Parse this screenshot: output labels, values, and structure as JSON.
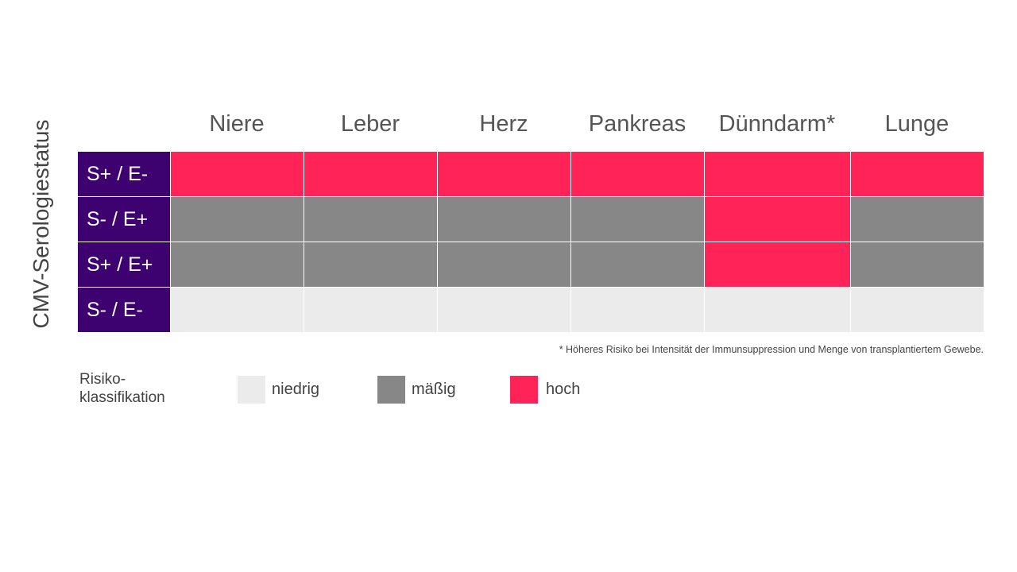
{
  "chart_data": {
    "type": "heatmap",
    "title": "",
    "ylabel": "CMV-Serologiestatus",
    "columns": [
      "Niere",
      "Leber",
      "Herz",
      "Pankreas",
      "Dünndarm*",
      "Lunge"
    ],
    "rows": [
      {
        "label": "S+ / E-",
        "values": [
          "hoch",
          "hoch",
          "hoch",
          "hoch",
          "hoch",
          "hoch"
        ]
      },
      {
        "label": "S- / E+",
        "values": [
          "mäßig",
          "mäßig",
          "mäßig",
          "mäßig",
          "hoch",
          "mäßig"
        ]
      },
      {
        "label": "S+ / E+",
        "values": [
          "mäßig",
          "mäßig",
          "mäßig",
          "mäßig",
          "hoch",
          "mäßig"
        ]
      },
      {
        "label": "S- / E-",
        "values": [
          "niedrig",
          "niedrig",
          "niedrig",
          "niedrig",
          "niedrig",
          "niedrig"
        ]
      }
    ],
    "legend": {
      "title_line1": "Risiko-",
      "title_line2": "klassifikation",
      "items": [
        {
          "key": "niedrig",
          "label": "niedrig",
          "color": "#ebebeb"
        },
        {
          "key": "mäßig",
          "label": "mäßig",
          "color": "#878787"
        },
        {
          "key": "hoch",
          "label": "hoch",
          "color": "#ff2358"
        }
      ]
    },
    "footnote": "* Höheres Risiko bei Intensität der Immunsuppression und Menge von transplantiertem Gewebe.",
    "row_label_color": "#3d0170"
  }
}
